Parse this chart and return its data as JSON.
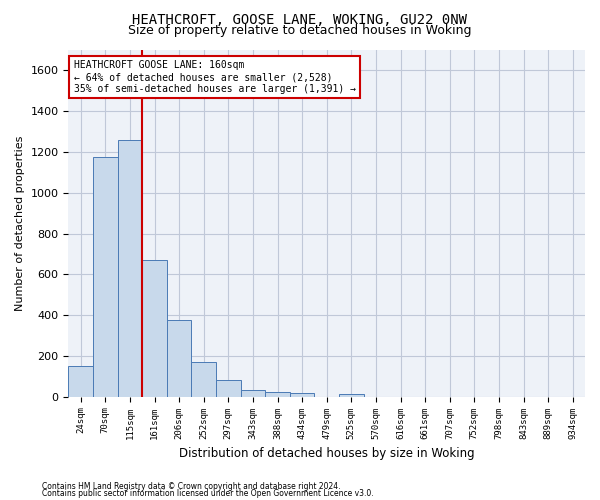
{
  "title": "HEATHCROFT, GOOSE LANE, WOKING, GU22 0NW",
  "subtitle": "Size of property relative to detached houses in Woking",
  "xlabel": "Distribution of detached houses by size in Woking",
  "ylabel": "Number of detached properties",
  "bar_labels": [
    "24sqm",
    "70sqm",
    "115sqm",
    "161sqm",
    "206sqm",
    "252sqm",
    "297sqm",
    "343sqm",
    "388sqm",
    "434sqm",
    "479sqm",
    "525sqm",
    "570sqm",
    "616sqm",
    "661sqm",
    "707sqm",
    "752sqm",
    "798sqm",
    "843sqm",
    "889sqm",
    "934sqm"
  ],
  "bar_values": [
    150,
    1175,
    1260,
    670,
    375,
    170,
    80,
    35,
    25,
    20,
    0,
    15,
    0,
    0,
    0,
    0,
    0,
    0,
    0,
    0,
    0
  ],
  "bar_color": "#c8d9eb",
  "bar_edge_color": "#4a7ab5",
  "vline_color": "#cc0000",
  "vline_xindex": 2.5,
  "annotation_line1": "HEATHCROFT GOOSE LANE: 160sqm",
  "annotation_line2": "← 64% of detached houses are smaller (2,528)",
  "annotation_line3": "35% of semi-detached houses are larger (1,391) →",
  "annotation_box_facecolor": "#ffffff",
  "annotation_box_edgecolor": "#cc0000",
  "ylim": [
    0,
    1700
  ],
  "yticks": [
    0,
    200,
    400,
    600,
    800,
    1000,
    1200,
    1400,
    1600
  ],
  "grid_color": "#c0c8d8",
  "axes_bg_color": "#eef2f8",
  "title_fontsize": 10,
  "subtitle_fontsize": 9,
  "footer1": "Contains HM Land Registry data © Crown copyright and database right 2024.",
  "footer2": "Contains public sector information licensed under the Open Government Licence v3.0."
}
